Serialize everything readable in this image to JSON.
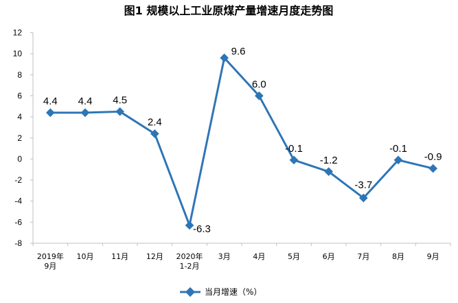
{
  "chart_data": {
    "type": "line",
    "title": "图1  规模以上工业原煤产量增速月度走势图",
    "categories": [
      [
        "2019年",
        "9月"
      ],
      [
        "10月"
      ],
      [
        "11月"
      ],
      [
        "12月"
      ],
      [
        "2020年",
        "1-2月"
      ],
      [
        "3月"
      ],
      [
        "4月"
      ],
      [
        "5月"
      ],
      [
        "6月"
      ],
      [
        "7月"
      ],
      [
        "8月"
      ],
      [
        "9月"
      ]
    ],
    "series": [
      {
        "name": "当月增速（%）",
        "values": [
          4.4,
          4.4,
          4.5,
          2.4,
          -6.3,
          9.6,
          6.0,
          -0.1,
          -1.2,
          -3.7,
          -0.1,
          -0.9
        ],
        "labels": [
          "4.4",
          "4.4",
          "4.5",
          "2.4",
          "-6.3",
          "9.6",
          "6.0",
          "-0.1",
          "-1.2",
          "-3.7",
          "-0.1",
          "-0.9"
        ],
        "color": "#2E75B6"
      }
    ],
    "ylim": [
      -8,
      12
    ],
    "yticks": [
      -8,
      -6,
      -4,
      -2,
      0,
      2,
      4,
      6,
      8,
      10,
      12
    ],
    "xlabel": "",
    "ylabel": "",
    "grid": false,
    "legend": "bottom"
  }
}
